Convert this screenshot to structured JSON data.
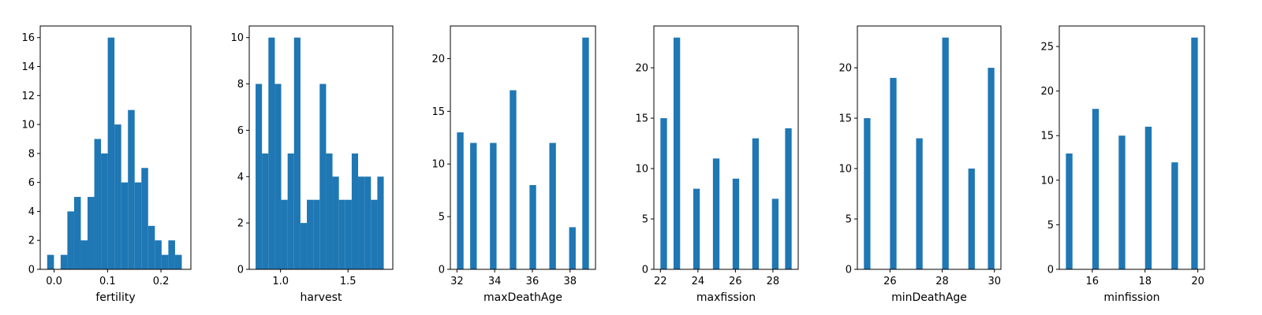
{
  "chart_data": [
    {
      "type": "bar",
      "xlabel": "fertility",
      "xlim": [
        -0.026,
        0.256
      ],
      "ylim": [
        0,
        16.8
      ],
      "xticks": [
        0.0,
        0.1,
        0.2
      ],
      "xtick_labels": [
        "0.0",
        "0.1",
        "0.2"
      ],
      "yticks": [
        0,
        2,
        4,
        6,
        8,
        10,
        12,
        14,
        16
      ],
      "ytick_labels": [
        "0",
        "2",
        "4",
        "6",
        "8",
        "10",
        "12",
        "14",
        "16"
      ],
      "bins": [
        {
          "x0": -0.013,
          "x1": -0.0003,
          "value": 1
        },
        {
          "x0": -0.0003,
          "x1": 0.0122,
          "value": 0
        },
        {
          "x0": 0.0122,
          "x1": 0.0248,
          "value": 1
        },
        {
          "x0": 0.0248,
          "x1": 0.0374,
          "value": 4
        },
        {
          "x0": 0.0374,
          "x1": 0.05,
          "value": 5
        },
        {
          "x0": 0.05,
          "x1": 0.0626,
          "value": 2
        },
        {
          "x0": 0.0626,
          "x1": 0.0752,
          "value": 5
        },
        {
          "x0": 0.0752,
          "x1": 0.0878,
          "value": 9
        },
        {
          "x0": 0.0878,
          "x1": 0.1004,
          "value": 8
        },
        {
          "x0": 0.1004,
          "x1": 0.113,
          "value": 16
        },
        {
          "x0": 0.113,
          "x1": 0.1256,
          "value": 10
        },
        {
          "x0": 0.1256,
          "x1": 0.1382,
          "value": 6
        },
        {
          "x0": 0.1382,
          "x1": 0.1508,
          "value": 11
        },
        {
          "x0": 0.1508,
          "x1": 0.1634,
          "value": 6
        },
        {
          "x0": 0.1634,
          "x1": 0.176,
          "value": 7
        },
        {
          "x0": 0.176,
          "x1": 0.1886,
          "value": 3
        },
        {
          "x0": 0.1886,
          "x1": 0.2012,
          "value": 2
        },
        {
          "x0": 0.2012,
          "x1": 0.2138,
          "value": 1
        },
        {
          "x0": 0.2138,
          "x1": 0.2264,
          "value": 2
        },
        {
          "x0": 0.2264,
          "x1": 0.239,
          "value": 1
        }
      ]
    },
    {
      "type": "bar",
      "xlabel": "harvest",
      "xlim": [
        0.768,
        1.832
      ],
      "ylim": [
        0,
        10.5
      ],
      "xticks": [
        1.0,
        1.5
      ],
      "xtick_labels": [
        "1.0",
        "1.5"
      ],
      "yticks": [
        0,
        2,
        4,
        6,
        8,
        10
      ],
      "ytick_labels": [
        "0",
        "2",
        "4",
        "6",
        "8",
        "10"
      ],
      "bins": [
        {
          "x0": 0.815,
          "x1": 0.8625,
          "value": 8
        },
        {
          "x0": 0.8625,
          "x1": 0.91,
          "value": 5
        },
        {
          "x0": 0.91,
          "x1": 0.9575,
          "value": 10
        },
        {
          "x0": 0.9575,
          "x1": 1.005,
          "value": 8
        },
        {
          "x0": 1.005,
          "x1": 1.0525,
          "value": 3
        },
        {
          "x0": 1.0525,
          "x1": 1.1,
          "value": 5
        },
        {
          "x0": 1.1,
          "x1": 1.1475,
          "value": 10
        },
        {
          "x0": 1.1475,
          "x1": 1.195,
          "value": 2
        },
        {
          "x0": 1.195,
          "x1": 1.2425,
          "value": 3
        },
        {
          "x0": 1.2425,
          "x1": 1.29,
          "value": 3
        },
        {
          "x0": 1.29,
          "x1": 1.3375,
          "value": 8
        },
        {
          "x0": 1.3375,
          "x1": 1.385,
          "value": 5
        },
        {
          "x0": 1.385,
          "x1": 1.4325,
          "value": 4
        },
        {
          "x0": 1.4325,
          "x1": 1.48,
          "value": 3
        },
        {
          "x0": 1.48,
          "x1": 1.5275,
          "value": 3
        },
        {
          "x0": 1.5275,
          "x1": 1.575,
          "value": 5
        },
        {
          "x0": 1.575,
          "x1": 1.6225,
          "value": 4
        },
        {
          "x0": 1.6225,
          "x1": 1.67,
          "value": 4
        },
        {
          "x0": 1.67,
          "x1": 1.7175,
          "value": 3
        },
        {
          "x0": 1.7175,
          "x1": 1.765,
          "value": 4
        }
      ]
    },
    {
      "type": "bar",
      "xlabel": "maxDeathAge",
      "xlim": [
        31.65,
        39.35
      ],
      "ylim": [
        0,
        23.1
      ],
      "xticks": [
        32,
        34,
        36,
        38
      ],
      "xtick_labels": [
        "32",
        "34",
        "36",
        "38"
      ],
      "yticks": [
        0,
        5,
        10,
        15,
        20
      ],
      "ytick_labels": [
        "0",
        "5",
        "10",
        "15",
        "20"
      ],
      "bins": [
        {
          "x0": 32.0,
          "x1": 32.35,
          "value": 13
        },
        {
          "x0": 32.35,
          "x1": 32.7,
          "value": 0
        },
        {
          "x0": 32.7,
          "x1": 33.05,
          "value": 12
        },
        {
          "x0": 33.05,
          "x1": 33.4,
          "value": 0
        },
        {
          "x0": 33.4,
          "x1": 33.75,
          "value": 0
        },
        {
          "x0": 33.75,
          "x1": 34.1,
          "value": 12
        },
        {
          "x0": 34.1,
          "x1": 34.45,
          "value": 0
        },
        {
          "x0": 34.45,
          "x1": 34.8,
          "value": 0
        },
        {
          "x0": 34.8,
          "x1": 35.15,
          "value": 17
        },
        {
          "x0": 35.15,
          "x1": 35.5,
          "value": 0
        },
        {
          "x0": 35.5,
          "x1": 35.85,
          "value": 0
        },
        {
          "x0": 35.85,
          "x1": 36.2,
          "value": 8
        },
        {
          "x0": 36.2,
          "x1": 36.55,
          "value": 0
        },
        {
          "x0": 36.55,
          "x1": 36.9,
          "value": 0
        },
        {
          "x0": 36.9,
          "x1": 37.25,
          "value": 12
        },
        {
          "x0": 37.25,
          "x1": 37.6,
          "value": 0
        },
        {
          "x0": 37.6,
          "x1": 37.95,
          "value": 0
        },
        {
          "x0": 37.95,
          "x1": 38.3,
          "value": 4
        },
        {
          "x0": 38.3,
          "x1": 38.65,
          "value": 0
        },
        {
          "x0": 38.65,
          "x1": 39.0,
          "value": 22
        }
      ]
    },
    {
      "type": "bar",
      "xlabel": "maxfission",
      "xlim": [
        21.65,
        29.35
      ],
      "ylim": [
        0,
        24.15
      ],
      "xticks": [
        22,
        24,
        26,
        28
      ],
      "xtick_labels": [
        "22",
        "24",
        "26",
        "28"
      ],
      "yticks": [
        0,
        5,
        10,
        15,
        20
      ],
      "ytick_labels": [
        "0",
        "5",
        "10",
        "15",
        "20"
      ],
      "bins": [
        {
          "x0": 22.0,
          "x1": 22.35,
          "value": 15
        },
        {
          "x0": 22.35,
          "x1": 22.7,
          "value": 0
        },
        {
          "x0": 22.7,
          "x1": 23.05,
          "value": 23
        },
        {
          "x0": 23.05,
          "x1": 23.4,
          "value": 0
        },
        {
          "x0": 23.4,
          "x1": 23.75,
          "value": 0
        },
        {
          "x0": 23.75,
          "x1": 24.1,
          "value": 8
        },
        {
          "x0": 24.1,
          "x1": 24.45,
          "value": 0
        },
        {
          "x0": 24.45,
          "x1": 24.8,
          "value": 0
        },
        {
          "x0": 24.8,
          "x1": 25.15,
          "value": 11
        },
        {
          "x0": 25.15,
          "x1": 25.5,
          "value": 0
        },
        {
          "x0": 25.5,
          "x1": 25.85,
          "value": 0
        },
        {
          "x0": 25.85,
          "x1": 26.2,
          "value": 9
        },
        {
          "x0": 26.2,
          "x1": 26.55,
          "value": 0
        },
        {
          "x0": 26.55,
          "x1": 26.9,
          "value": 0
        },
        {
          "x0": 26.9,
          "x1": 27.25,
          "value": 13
        },
        {
          "x0": 27.25,
          "x1": 27.6,
          "value": 0
        },
        {
          "x0": 27.6,
          "x1": 27.95,
          "value": 0
        },
        {
          "x0": 27.95,
          "x1": 28.3,
          "value": 7
        },
        {
          "x0": 28.3,
          "x1": 28.65,
          "value": 0
        },
        {
          "x0": 28.65,
          "x1": 29.0,
          "value": 14
        }
      ]
    },
    {
      "type": "bar",
      "xlabel": "minDeathAge",
      "xlim": [
        24.75,
        30.25
      ],
      "ylim": [
        0,
        24.15
      ],
      "xticks": [
        26,
        28,
        30
      ],
      "xtick_labels": [
        "26",
        "28",
        "30"
      ],
      "yticks": [
        0,
        5,
        10,
        15,
        20
      ],
      "ytick_labels": [
        "0",
        "5",
        "10",
        "15",
        "20"
      ],
      "bins": [
        {
          "x0": 25.0,
          "x1": 25.25,
          "value": 15
        },
        {
          "x0": 25.25,
          "x1": 25.5,
          "value": 0
        },
        {
          "x0": 25.5,
          "x1": 25.75,
          "value": 0
        },
        {
          "x0": 25.75,
          "x1": 26.0,
          "value": 0
        },
        {
          "x0": 26.0,
          "x1": 26.25,
          "value": 19
        },
        {
          "x0": 26.25,
          "x1": 26.5,
          "value": 0
        },
        {
          "x0": 26.5,
          "x1": 26.75,
          "value": 0
        },
        {
          "x0": 26.75,
          "x1": 27.0,
          "value": 0
        },
        {
          "x0": 27.0,
          "x1": 27.25,
          "value": 13
        },
        {
          "x0": 27.25,
          "x1": 27.5,
          "value": 0
        },
        {
          "x0": 27.5,
          "x1": 27.75,
          "value": 0
        },
        {
          "x0": 27.75,
          "x1": 28.0,
          "value": 0
        },
        {
          "x0": 28.0,
          "x1": 28.25,
          "value": 23
        },
        {
          "x0": 28.25,
          "x1": 28.5,
          "value": 0
        },
        {
          "x0": 28.5,
          "x1": 28.75,
          "value": 0
        },
        {
          "x0": 28.75,
          "x1": 29.0,
          "value": 0
        },
        {
          "x0": 29.0,
          "x1": 29.25,
          "value": 10
        },
        {
          "x0": 29.25,
          "x1": 29.5,
          "value": 0
        },
        {
          "x0": 29.5,
          "x1": 29.75,
          "value": 0
        },
        {
          "x0": 29.75,
          "x1": 30.0,
          "value": 20
        }
      ]
    },
    {
      "type": "bar",
      "xlabel": "minfission",
      "xlim": [
        14.75,
        20.25
      ],
      "ylim": [
        0,
        27.3
      ],
      "xticks": [
        16,
        18,
        20
      ],
      "xtick_labels": [
        "16",
        "18",
        "20"
      ],
      "yticks": [
        0,
        5,
        10,
        15,
        20,
        25
      ],
      "ytick_labels": [
        "0",
        "5",
        "10",
        "15",
        "20",
        "25"
      ],
      "bins": [
        {
          "x0": 15.0,
          "x1": 15.25,
          "value": 13
        },
        {
          "x0": 15.25,
          "x1": 15.5,
          "value": 0
        },
        {
          "x0": 15.5,
          "x1": 15.75,
          "value": 0
        },
        {
          "x0": 15.75,
          "x1": 16.0,
          "value": 0
        },
        {
          "x0": 16.0,
          "x1": 16.25,
          "value": 18
        },
        {
          "x0": 16.25,
          "x1": 16.5,
          "value": 0
        },
        {
          "x0": 16.5,
          "x1": 16.75,
          "value": 0
        },
        {
          "x0": 16.75,
          "x1": 17.0,
          "value": 0
        },
        {
          "x0": 17.0,
          "x1": 17.25,
          "value": 15
        },
        {
          "x0": 17.25,
          "x1": 17.5,
          "value": 0
        },
        {
          "x0": 17.5,
          "x1": 17.75,
          "value": 0
        },
        {
          "x0": 17.75,
          "x1": 18.0,
          "value": 0
        },
        {
          "x0": 18.0,
          "x1": 18.25,
          "value": 16
        },
        {
          "x0": 18.25,
          "x1": 18.5,
          "value": 0
        },
        {
          "x0": 18.5,
          "x1": 18.75,
          "value": 0
        },
        {
          "x0": 18.75,
          "x1": 19.0,
          "value": 0
        },
        {
          "x0": 19.0,
          "x1": 19.25,
          "value": 12
        },
        {
          "x0": 19.25,
          "x1": 19.5,
          "value": 0
        },
        {
          "x0": 19.5,
          "x1": 19.75,
          "value": 0
        },
        {
          "x0": 19.75,
          "x1": 20.0,
          "value": 26
        }
      ]
    }
  ],
  "colors": {
    "bar": "#1f77b4",
    "axis": "#000000",
    "background": "#ffffff"
  }
}
